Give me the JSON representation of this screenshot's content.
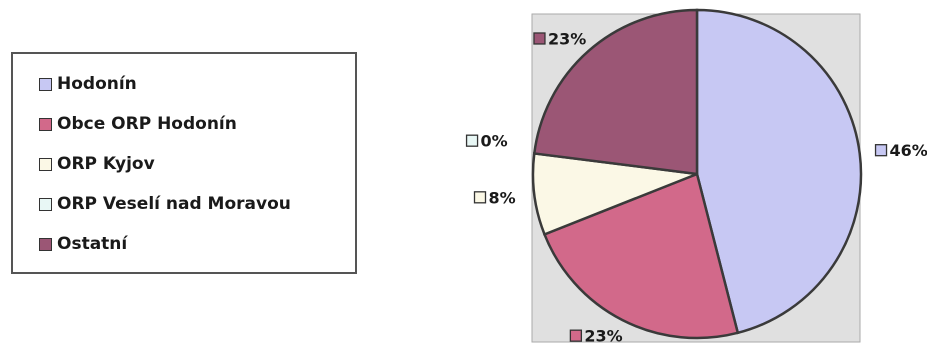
{
  "chart_data": {
    "type": "pie",
    "legend_position": "left",
    "categories": [
      "Hodonín",
      "Obce ORP Hodonín",
      "ORP Kyjov",
      "ORP Veselí nad Moravou",
      "Ostatní"
    ],
    "values": [
      46,
      23,
      8,
      0,
      23
    ],
    "data_labels": [
      "46%",
      "23%",
      "8%",
      "0%",
      "23%"
    ],
    "colors": [
      "#c7c8f3",
      "#d2698a",
      "#fbf8e6",
      "#e8f7f5",
      "#9b5675"
    ],
    "plot_background": "#e0e0e0"
  }
}
